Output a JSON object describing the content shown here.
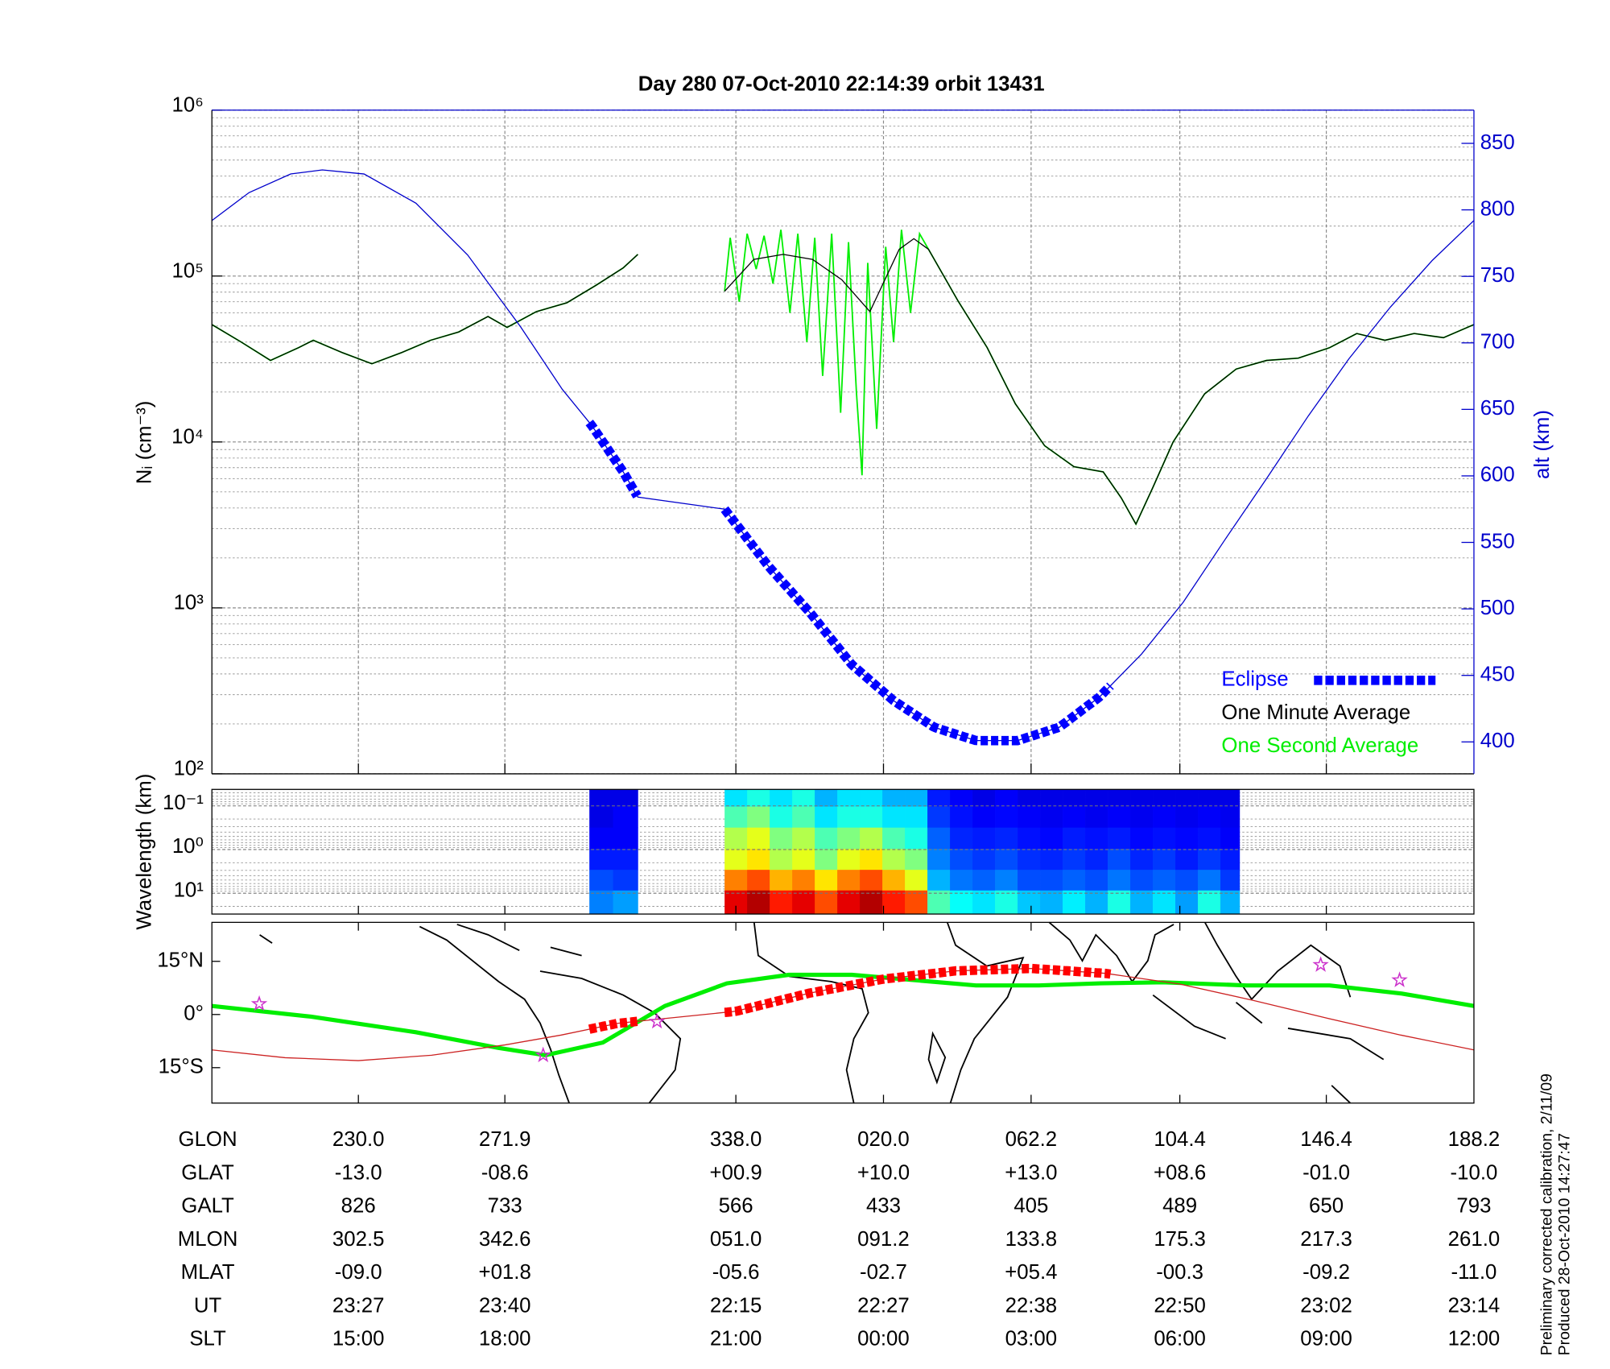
{
  "chart_data": [
    {
      "type": "line",
      "title": "Day 280  07-Oct-2010 22:14:39   orbit 13431",
      "ylabel": "Nᵢ (cm⁻³)",
      "y2label": "alt (km)",
      "log_y": true,
      "grid": true,
      "legend": "lower right",
      "xlim": [
        0,
        112
      ],
      "xticks": [
        13,
        26,
        46.5,
        59.6,
        72.7,
        85.9,
        98.9
      ],
      "ylim": [
        100,
        1000000
      ],
      "yticks": [
        {
          "value": 100,
          "label": "10²"
        },
        {
          "value": 1000,
          "label": "10³"
        },
        {
          "value": 10000,
          "label": "10⁴"
        },
        {
          "value": 100000,
          "label": "10⁵"
        },
        {
          "value": 1000000,
          "label": "10⁶"
        }
      ],
      "y2lim": [
        376,
        875
      ],
      "y2ticks": [
        400,
        450,
        500,
        550,
        600,
        650,
        700,
        750,
        800,
        850
      ],
      "series": [
        {
          "name": "One Second Average",
          "color": "#00ee00",
          "x": [
            0,
            2.6,
            5.2,
            7.7,
            9.0,
            11.6,
            14.2,
            16.8,
            19.4,
            21.9,
            24.5,
            26.2,
            28.8,
            31.5,
            34.1,
            36.5,
            37.8,
            40,
            45.5,
            46.0,
            46.8,
            47.5,
            48.3,
            49.0,
            49.8,
            50.5,
            51.3,
            52.0,
            52.8,
            53.5,
            54.2,
            55.0,
            55.8,
            56.5,
            57.2,
            57.7,
            58.2,
            59.0,
            59.8,
            60.5,
            61.2,
            62.0,
            62.8,
            63.6,
            66.2,
            68.8,
            71.3,
            73.9,
            76.5,
            79.1,
            80.7,
            82.0,
            83.5,
            85.3,
            88.1,
            90.9,
            93.6,
            96.4,
            99.2,
            101.6,
            104.1,
            106.7,
            109.3,
            112
          ],
          "values": [
            51000,
            40000,
            31000,
            37000,
            41000,
            34500,
            29600,
            34500,
            41000,
            46000,
            57000,
            49000,
            61000,
            69000,
            88000,
            112000,
            135000,
            null,
            81000,
            170000,
            70000,
            180000,
            110000,
            175000,
            90000,
            190000,
            60000,
            180000,
            40000,
            170000,
            25000,
            180000,
            15000,
            160000,
            20000,
            6300,
            120000,
            12000,
            150000,
            40000,
            190000,
            60000,
            180000,
            145000,
            71000,
            37000,
            17000,
            9500,
            7100,
            6600,
            4600,
            3200,
            5300,
            10000,
            19500,
            27500,
            31000,
            32000,
            37000,
            45000,
            41000,
            45000,
            42500,
            51000
          ]
        },
        {
          "name": "One Minute Average",
          "color": "#000000",
          "x": [
            0,
            2.6,
            5.2,
            7.7,
            9.0,
            11.6,
            14.2,
            16.8,
            19.4,
            21.9,
            24.5,
            26.2,
            28.8,
            31.5,
            34.1,
            36.5,
            37.8,
            40,
            45.5,
            48.1,
            50.7,
            53.3,
            55.9,
            58.4,
            61.0,
            62.3,
            63.6,
            66.2,
            68.8,
            71.3,
            73.9,
            76.5,
            79.1,
            80.7,
            82.0,
            83.5,
            85.3,
            88.1,
            90.9,
            93.6,
            96.4,
            99.2,
            101.6,
            104.1,
            106.7,
            109.3,
            112
          ],
          "values": [
            51000,
            40000,
            31000,
            37000,
            41000,
            34500,
            29600,
            34500,
            41000,
            46000,
            57000,
            49000,
            61000,
            69000,
            88000,
            112000,
            135000,
            null,
            81000,
            126000,
            135000,
            126000,
            95000,
            61000,
            145000,
            168000,
            145000,
            71000,
            37000,
            17000,
            9500,
            7100,
            6600,
            4600,
            3200,
            5300,
            10000,
            19500,
            27500,
            31000,
            32000,
            37000,
            45000,
            41000,
            45000,
            42500,
            51000
          ]
        }
      ],
      "altitude": {
        "color": "#0000cc",
        "axis": "y2",
        "x": [
          0,
          3.3,
          7.0,
          9.8,
          13.5,
          18.1,
          22.7,
          27.4,
          31.1,
          33.7,
          36.5,
          37.8,
          45.5,
          49.4,
          53.1,
          56.8,
          60.5,
          64.1,
          67.8,
          71.5,
          75.2,
          78.8,
          82.5,
          86.2,
          89.9,
          93.6,
          97.3,
          100.9,
          104.6,
          108.3,
          112
        ],
        "values": [
          792,
          813,
          827,
          830,
          827,
          805,
          766,
          712,
          665,
          638,
          603,
          584,
          575,
          532,
          497,
          458,
          431,
          411,
          401,
          401,
          411,
          434,
          466,
          505,
          552,
          598,
          645,
          688,
          727,
          762,
          792
        ]
      },
      "eclipse": {
        "name": "Eclipse",
        "color": "#0000ff",
        "ranges": [
          [
            33.5,
            37.8
          ],
          [
            45.5,
            79.8
          ]
        ]
      }
    },
    {
      "type": "heatmap",
      "ylabel": "Wavelength (km)",
      "log_y": true,
      "y_inverted": true,
      "xlim": [
        0,
        112
      ],
      "ylim": [
        0.042,
        30
      ],
      "yticks": [
        {
          "value": 0.1,
          "label": "10⁻¹"
        },
        {
          "value": 1,
          "label": "10⁰"
        },
        {
          "value": 10,
          "label": "10¹"
        }
      ],
      "rows": [
        0.06,
        0.18,
        0.55,
        1.7,
        5,
        15
      ],
      "blocks": [
        {
          "bins": [
            33.5,
            35.6,
            37.8
          ],
          "intensity": [
            [
              0.1,
              0.1,
              0.12,
              0.15,
              0.2,
              0.25
            ],
            [
              0.1,
              0.12,
              0.12,
              0.15,
              0.18,
              0.28
            ]
          ]
        },
        {
          "bins": [
            45.5,
            47.5,
            49.5,
            51.5,
            53.5,
            55.5,
            57.5,
            59.5,
            61.5,
            63.5,
            65.5,
            67.5,
            69.5,
            71.5,
            73.5,
            75.5,
            77.5,
            79.5,
            81.5,
            83.5,
            85.5,
            87.5,
            89.5,
            91.2
          ],
          "intensity": [
            [
              0.35,
              0.45,
              0.55,
              0.6,
              0.75,
              0.9
            ],
            [
              0.4,
              0.5,
              0.6,
              0.65,
              0.8,
              0.95
            ],
            [
              0.35,
              0.4,
              0.5,
              0.55,
              0.7,
              0.85
            ],
            [
              0.4,
              0.45,
              0.55,
              0.6,
              0.75,
              0.9
            ],
            [
              0.3,
              0.35,
              0.45,
              0.5,
              0.65,
              0.8
            ],
            [
              0.35,
              0.4,
              0.5,
              0.6,
              0.75,
              0.9
            ],
            [
              0.35,
              0.4,
              0.55,
              0.65,
              0.8,
              0.95
            ],
            [
              0.3,
              0.35,
              0.45,
              0.55,
              0.7,
              0.85
            ],
            [
              0.3,
              0.35,
              0.4,
              0.5,
              0.6,
              0.8
            ],
            [
              0.15,
              0.18,
              0.22,
              0.25,
              0.3,
              0.45
            ],
            [
              0.12,
              0.14,
              0.16,
              0.2,
              0.24,
              0.38
            ],
            [
              0.1,
              0.12,
              0.15,
              0.18,
              0.22,
              0.35
            ],
            [
              0.12,
              0.13,
              0.16,
              0.2,
              0.25,
              0.4
            ],
            [
              0.1,
              0.12,
              0.14,
              0.17,
              0.2,
              0.32
            ],
            [
              0.1,
              0.11,
              0.13,
              0.16,
              0.2,
              0.3
            ],
            [
              0.1,
              0.12,
              0.15,
              0.18,
              0.22,
              0.36
            ],
            [
              0.1,
              0.11,
              0.14,
              0.16,
              0.2,
              0.3
            ],
            [
              0.1,
              0.12,
              0.15,
              0.2,
              0.24,
              0.4
            ],
            [
              0.1,
              0.11,
              0.13,
              0.16,
              0.2,
              0.3
            ],
            [
              0.1,
              0.12,
              0.14,
              0.18,
              0.22,
              0.35
            ],
            [
              0.1,
              0.11,
              0.13,
              0.15,
              0.2,
              0.28
            ],
            [
              0.1,
              0.12,
              0.14,
              0.18,
              0.24,
              0.4
            ],
            [
              0.1,
              0.11,
              0.12,
              0.15,
              0.18,
              0.3
            ]
          ]
        }
      ]
    },
    {
      "type": "map",
      "xlim": [
        0,
        112
      ],
      "ylim": [
        -25,
        26
      ],
      "yticks": [
        {
          "value": 15,
          "label": "15°N"
        },
        {
          "value": 0,
          "label": "0°"
        },
        {
          "value": -15,
          "label": "15°S"
        }
      ],
      "series": [
        {
          "color": "#00ee00",
          "x": [
            0,
            8.8,
            18.1,
            25.4,
            29.6,
            34.7,
            40.2,
            45.7,
            51.2,
            56.8,
            62.3,
            67.8,
            73.4,
            78.9,
            84.4,
            91.8,
            99.2,
            105.6,
            112
          ],
          "values": [
            2.4,
            -0.6,
            -5,
            -9.4,
            -11.5,
            -7.9,
            2.4,
            8.8,
            11.2,
            11.2,
            9.7,
            8.2,
            8.2,
            8.8,
            9.1,
            8.2,
            8.2,
            5.9,
            2.4
          ]
        },
        {
          "color": "#cc2222",
          "x": [
            0,
            6.5,
            13,
            19.5,
            26,
            31,
            36,
            46.5,
            53,
            59.6,
            66,
            72.7,
            79.3,
            85.9,
            92.4,
            98.9,
            105.5,
            112
          ],
          "values": [
            -10,
            -12.2,
            -13,
            -11.5,
            -8.6,
            -5.8,
            -2.5,
            0.9,
            6,
            10,
            12.3,
            13,
            11.6,
            8.6,
            4,
            -1,
            -5.8,
            -10
          ]
        }
      ],
      "eclipse": {
        "color": "#ff0000",
        "ranges": [
          [
            33.5,
            37.8
          ],
          [
            45.5,
            79.8
          ]
        ]
      },
      "stars": {
        "color": "#cc33cc",
        "x": [
          4.2,
          29.4,
          39.5,
          98.4,
          105.4
        ],
        "values": [
          3,
          -11.5,
          -2,
          14,
          9.7
        ]
      }
    }
  ],
  "table": {
    "x": [
      13,
      26,
      46.5,
      59.6,
      72.7,
      85.9,
      98.9,
      112
    ],
    "rows": [
      {
        "label": "GLON",
        "values": [
          "230.0",
          "271.9",
          "338.0",
          "020.0",
          "062.2",
          "104.4",
          "146.4",
          "188.2"
        ]
      },
      {
        "label": "GLAT",
        "values": [
          "-13.0",
          "-08.6",
          "+00.9",
          "+10.0",
          "+13.0",
          "+08.6",
          "-01.0",
          "-10.0"
        ]
      },
      {
        "label": "GALT",
        "values": [
          "826",
          "733",
          "566",
          "433",
          "405",
          "489",
          "650",
          "793"
        ]
      },
      {
        "label": "MLON",
        "values": [
          "302.5",
          "342.6",
          "051.0",
          "091.2",
          "133.8",
          "175.3",
          "217.3",
          "261.0"
        ]
      },
      {
        "label": "MLAT",
        "values": [
          "-09.0",
          "+01.8",
          "-05.6",
          "-02.7",
          "+05.4",
          "-00.3",
          "-09.2",
          "-11.0"
        ]
      },
      {
        "label": "UT",
        "values": [
          "23:27",
          "23:40",
          "22:15",
          "22:27",
          "22:38",
          "22:50",
          "23:02",
          "23:14"
        ]
      },
      {
        "label": "SLT",
        "values": [
          "15:00",
          "18:00",
          "21:00",
          "00:00",
          "03:00",
          "06:00",
          "09:00",
          "12:00"
        ]
      }
    ]
  },
  "footnote": [
    "Preliminary corrected calibration, 2/11/09",
    "Produced 28-Oct-2010 14:27:47"
  ]
}
